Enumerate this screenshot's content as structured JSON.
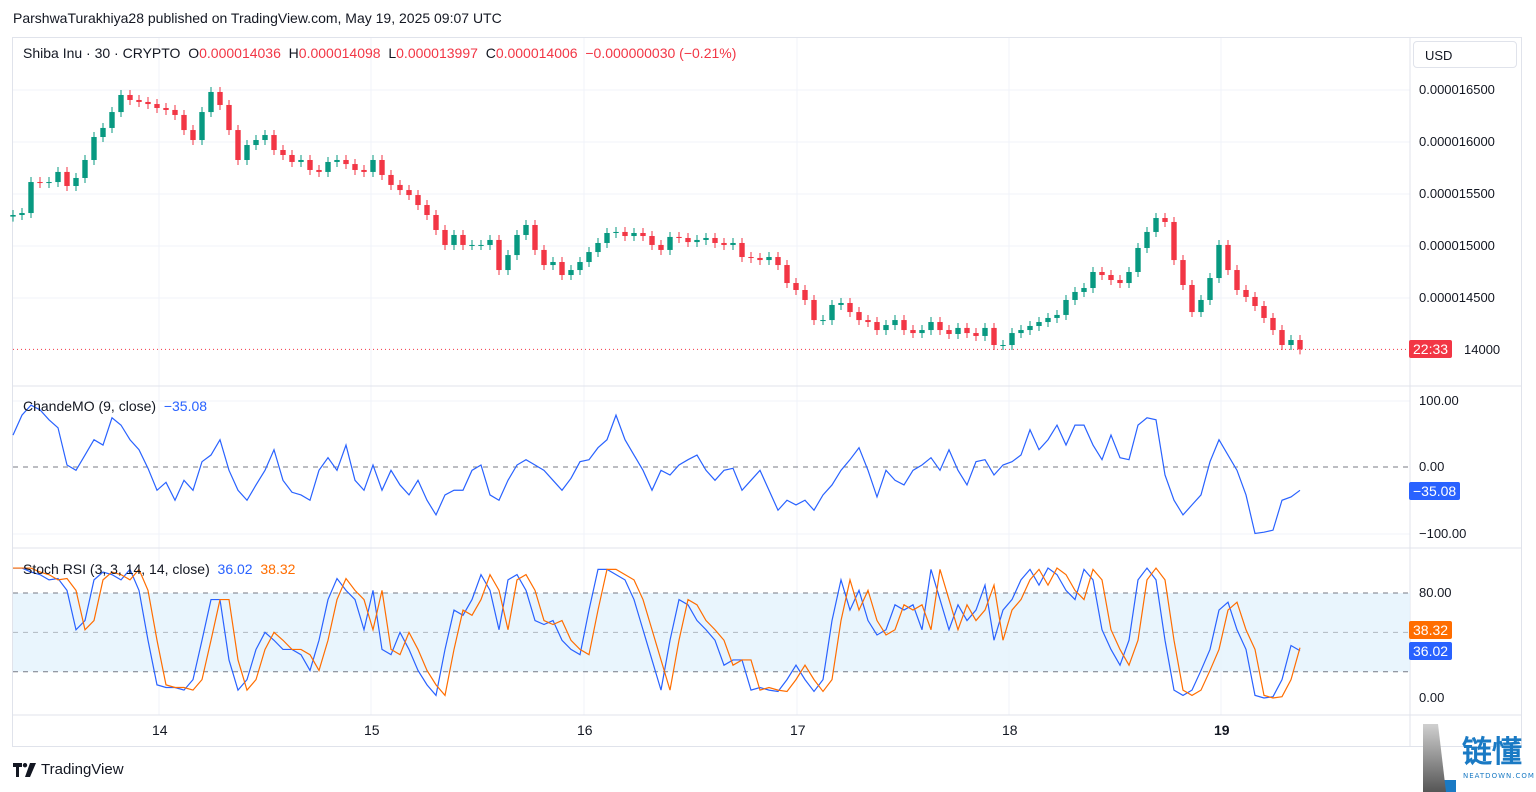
{
  "header": {
    "published": "ParshwaTurakhiya28 published on TradingView.com, May 19, 2025 09:07 UTC"
  },
  "legend": {
    "symbol": "Shiba Inu · 30 · CRYPTO",
    "o_label": "O",
    "o": "0.000014036",
    "h_label": "H",
    "h": "0.000014098",
    "l_label": "L",
    "l": "0.000013997",
    "c_label": "C",
    "c": "0.000014006",
    "change": "−0.000000030 (−0.21%)"
  },
  "currency_button": "USD",
  "price_axis": [
    "0.000016500",
    "0.000016000",
    "0.000015500",
    "0.000015000",
    "0.000014500"
  ],
  "price_axis_partial": "14000",
  "countdown": "22:33",
  "cmo": {
    "label": "ChandeMO (9, close)",
    "value": "−35.08",
    "axis": [
      "100.00",
      "0.00",
      "−100.00"
    ],
    "tag": "−35.08"
  },
  "stoch": {
    "label": "Stoch RSI (3, 3, 14, 14, close)",
    "k_value": "36.02",
    "d_value": "38.32",
    "axis": [
      "80.00",
      "0.00"
    ],
    "k_tag": "36.02",
    "d_tag": "38.32"
  },
  "time_axis": [
    "14",
    "15",
    "16",
    "17",
    "18",
    "19"
  ],
  "branding": {
    "tradingview": "TradingView",
    "watermark": "链懂 NEATDOWN.COM"
  },
  "colors": {
    "up": "#089981",
    "down": "#f23645",
    "cmo": "#2962ff",
    "k": "#2962ff",
    "d": "#ff6d00",
    "band": "#e3f2fd"
  },
  "chart_data": [
    {
      "type": "candlestick",
      "title": "Shiba Inu · 30 · CRYPTO",
      "x_range": [
        "May 13",
        "May 19"
      ],
      "ylim": [
        1.39e-05,
        1.67e-05
      ],
      "grid": true,
      "closes": [
        1.5298e-05,
        1.5317e-05,
        1.5615e-05,
        1.5606e-05,
        1.5615e-05,
        1.5712e-05,
        1.5577e-05,
        1.5654e-05,
        1.5827e-05,
        1.6048e-05,
        1.6135e-05,
        1.6288e-05,
        1.6452e-05,
        1.6404e-05,
        1.6385e-05,
        1.6365e-05,
        1.6327e-05,
        1.6308e-05,
        1.626e-05,
        1.6115e-05,
        1.6019e-05,
        1.6288e-05,
        1.6481e-05,
        1.6356e-05,
        1.6115e-05,
        1.5827e-05,
        1.5971e-05,
        1.6019e-05,
        1.6067e-05,
        1.5923e-05,
        1.5875e-05,
        1.5808e-05,
        1.5827e-05,
        1.5731e-05,
        1.5712e-05,
        1.5808e-05,
        1.5827e-05,
        1.5788e-05,
        1.5731e-05,
        1.5712e-05,
        1.5827e-05,
        1.5683e-05,
        1.5587e-05,
        1.5538e-05,
        1.549e-05,
        1.5394e-05,
        1.5298e-05,
        1.5154e-05,
        1.501e-05,
        1.5106e-05,
        1.501e-05,
        1.501e-05,
        1.501e-05,
        1.5058e-05,
        1.4769e-05,
        1.4913e-05,
        1.5106e-05,
        1.5202e-05,
        1.4962e-05,
        1.4817e-05,
        1.4846e-05,
        1.4721e-05,
        1.4769e-05,
        1.4846e-05,
        1.4942e-05,
        1.5029e-05,
        1.5125e-05,
        1.5135e-05,
        1.5096e-05,
        1.5125e-05,
        1.5096e-05,
        1.501e-05,
        1.4962e-05,
        1.5087e-05,
        1.5077e-05,
        1.5038e-05,
        1.5058e-05,
        1.5077e-05,
        1.5029e-05,
        1.501e-05,
        1.5029e-05,
        1.4894e-05,
        1.4885e-05,
        1.4865e-05,
        1.4894e-05,
        1.4817e-05,
        1.4644e-05,
        1.4577e-05,
        1.4481e-05,
        1.4288e-05,
        1.4288e-05,
        1.4433e-05,
        1.4452e-05,
        1.4365e-05,
        1.4288e-05,
        1.4269e-05,
        1.4192e-05,
        1.424e-05,
        1.4288e-05,
        1.4192e-05,
        1.4163e-05,
        1.4192e-05,
        1.4269e-05,
        1.4192e-05,
        1.4154e-05,
        1.4212e-05,
        1.4163e-05,
        1.4135e-05,
        1.4212e-05,
        1.4048e-05,
        1.4048e-05,
        1.4163e-05,
        1.4192e-05,
        1.4231e-05,
        1.4269e-05,
        1.4308e-05,
        1.4337e-05,
        1.4481e-05,
        1.4558e-05,
        1.4596e-05,
        1.475e-05,
        1.4721e-05,
        1.4673e-05,
        1.4644e-05,
        1.475e-05,
        1.4981e-05,
        1.5135e-05,
        1.5269e-05,
        1.5231e-05,
        1.4865e-05,
        1.4625e-05,
        1.4365e-05,
        1.4481e-05,
        1.4692e-05,
        1.501e-05,
        1.4769e-05,
        1.4577e-05,
        1.451e-05,
        1.4423e-05,
        1.4308e-05,
        1.4192e-05,
        1.4048e-05,
        1.4096e-05,
        1.4006e-05
      ],
      "last_close": 1.4006e-05
    },
    {
      "type": "line",
      "title": "ChandeMO (9, close)",
      "ylim": [
        -100,
        100
      ],
      "reference_line": 0,
      "values": [
        48,
        78,
        93,
        86,
        71,
        59,
        3,
        -5,
        18,
        41,
        33,
        74,
        63,
        41,
        26,
        -2,
        -35,
        -23,
        -50,
        -20,
        -35,
        8,
        18,
        41,
        -5,
        -35,
        -50,
        -27,
        -5,
        26,
        -20,
        -38,
        -42,
        -50,
        -5,
        14,
        -5,
        33,
        -20,
        -35,
        3,
        -35,
        -5,
        -27,
        -42,
        -20,
        -50,
        -72,
        -42,
        -35,
        -35,
        -5,
        3,
        -42,
        -50,
        -20,
        3,
        11,
        3,
        -5,
        -20,
        -35,
        -17,
        8,
        11,
        29,
        41,
        78,
        41,
        18,
        -5,
        -35,
        -5,
        -12,
        3,
        11,
        18,
        -5,
        -20,
        -5,
        -2,
        -35,
        -20,
        -5,
        -35,
        -65,
        -50,
        -57,
        -50,
        -65,
        -42,
        -27,
        -5,
        11,
        29,
        -5,
        -45,
        -5,
        -20,
        -27,
        -5,
        3,
        14,
        -5,
        26,
        -5,
        -27,
        8,
        11,
        -12,
        3,
        8,
        18,
        56,
        26,
        41,
        63,
        33,
        63,
        63,
        33,
        11,
        48,
        14,
        11,
        63,
        74,
        71,
        -12,
        -50,
        -72,
        -57,
        -42,
        8,
        41,
        18,
        -5,
        -42,
        -100,
        -98,
        -95,
        -50,
        -45,
        -35.08
      ]
    },
    {
      "type": "line",
      "title": "Stoch RSI (3, 3, 14, 14, close)",
      "ylim": [
        -5,
        110
      ],
      "band": [
        20,
        80
      ],
      "reference_lines": [
        20,
        50,
        80
      ],
      "series": [
        {
          "name": "K",
          "values": [
            99,
            99,
            96,
            94,
            90,
            91,
            82,
            52,
            59,
            90,
            96,
            94,
            90,
            98,
            82,
            44,
            10,
            8,
            8,
            6,
            14,
            44,
            75,
            75,
            29,
            6,
            14,
            37,
            50,
            44,
            37,
            37,
            33,
            21,
            44,
            75,
            91,
            82,
            75,
            52,
            82,
            37,
            33,
            50,
            37,
            21,
            10,
            2,
            37,
            67,
            63,
            75,
            94,
            82,
            52,
            90,
            94,
            82,
            59,
            56,
            59,
            44,
            37,
            33,
            67,
            98,
            98,
            94,
            90,
            75,
            52,
            29,
            6,
            44,
            75,
            71,
            59,
            52,
            44,
            25,
            29,
            29,
            6,
            8,
            6,
            5,
            14,
            25,
            14,
            5,
            14,
            59,
            90,
            67,
            82,
            59,
            48,
            52,
            71,
            67,
            71,
            52,
            98,
            75,
            52,
            71,
            59,
            67,
            86,
            44,
            67,
            75,
            90,
            98,
            86,
            99,
            94,
            82,
            75,
            98,
            90,
            52,
            37,
            25,
            44,
            90,
            99,
            90,
            44,
            6,
            2,
            6,
            21,
            37,
            67,
            73,
            52,
            37,
            2,
            0,
            1,
            14,
            40,
            36.02
          ]
        },
        {
          "name": "D",
          "values": [
            99,
            99,
            99,
            96,
            94,
            90,
            91,
            82,
            52,
            59,
            90,
            96,
            94,
            90,
            98,
            82,
            44,
            10,
            8,
            8,
            6,
            14,
            44,
            75,
            75,
            29,
            6,
            14,
            37,
            50,
            44,
            37,
            37,
            33,
            21,
            44,
            75,
            91,
            82,
            75,
            52,
            82,
            37,
            33,
            50,
            37,
            21,
            10,
            2,
            37,
            67,
            63,
            75,
            94,
            82,
            52,
            90,
            94,
            82,
            59,
            56,
            59,
            44,
            37,
            33,
            67,
            98,
            98,
            94,
            90,
            75,
            52,
            29,
            6,
            44,
            75,
            71,
            59,
            52,
            44,
            25,
            29,
            29,
            6,
            8,
            6,
            5,
            14,
            25,
            14,
            5,
            14,
            59,
            90,
            67,
            82,
            59,
            48,
            52,
            71,
            67,
            71,
            52,
            98,
            75,
            52,
            71,
            59,
            67,
            86,
            44,
            67,
            75,
            90,
            98,
            86,
            99,
            94,
            82,
            75,
            98,
            90,
            52,
            37,
            25,
            44,
            90,
            99,
            90,
            44,
            6,
            2,
            6,
            21,
            37,
            67,
            73,
            52,
            37,
            2,
            0,
            1,
            14,
            38.32
          ]
        }
      ]
    }
  ]
}
